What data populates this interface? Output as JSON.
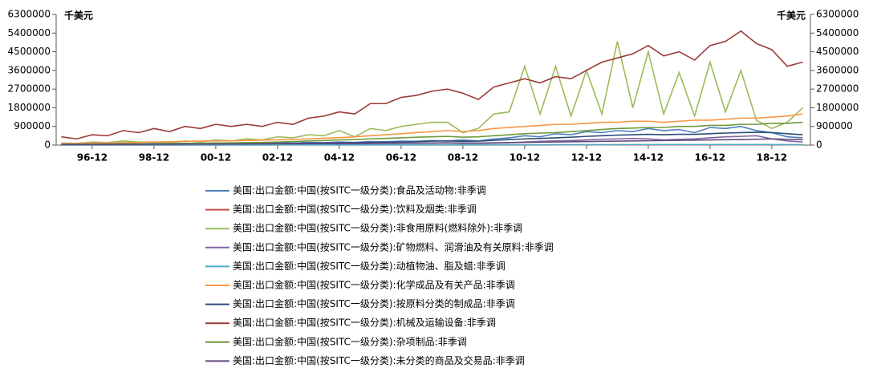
{
  "chart_data": {
    "type": "line",
    "y_unit": "千美元",
    "y2_unit": "千美元",
    "x": [
      "95-12",
      "96-06",
      "96-12",
      "97-06",
      "97-12",
      "98-06",
      "98-12",
      "99-06",
      "99-12",
      "00-06",
      "00-12",
      "01-06",
      "01-12",
      "02-06",
      "02-12",
      "03-06",
      "03-12",
      "04-06",
      "04-12",
      "05-06",
      "05-12",
      "06-06",
      "06-12",
      "07-06",
      "07-12",
      "08-06",
      "08-12",
      "09-06",
      "09-12",
      "10-06",
      "10-12",
      "11-06",
      "11-12",
      "12-06",
      "12-12",
      "13-06",
      "13-12",
      "14-06",
      "14-12",
      "15-06",
      "15-12",
      "16-06",
      "16-12",
      "17-06",
      "17-12",
      "18-06",
      "18-12",
      "19-06",
      "19-12"
    ],
    "xlim": [
      "95-10",
      "20-03"
    ],
    "xticks": [
      "96-12",
      "98-12",
      "00-12",
      "02-12",
      "04-12",
      "06-12",
      "08-12",
      "10-12",
      "12-12",
      "14-12",
      "16-12",
      "18-12"
    ],
    "ylim": [
      0,
      6300000
    ],
    "yticks": [
      0,
      900000,
      1800000,
      2700000,
      3600000,
      4500000,
      5400000,
      6300000
    ],
    "y2lim": [
      0,
      6300000
    ],
    "y2ticks": [
      0,
      900000,
      1800000,
      2700000,
      3600000,
      4500000,
      5400000,
      6300000
    ],
    "series": [
      {
        "name": "美国:出口金额:中国(按SITC一级分类):食品及活动物:非季调",
        "color": "#4f81bd",
        "values": [
          50000,
          40000,
          60000,
          50000,
          70000,
          60000,
          80000,
          60000,
          90000,
          70000,
          100000,
          80000,
          100000,
          90000,
          110000,
          100000,
          130000,
          120000,
          150000,
          130000,
          170000,
          160000,
          190000,
          180000,
          220000,
          200000,
          250000,
          200000,
          300000,
          350000,
          450000,
          400000,
          550000,
          500000,
          650000,
          600000,
          700000,
          650000,
          800000,
          700000,
          750000,
          600000,
          850000,
          800000,
          900000,
          700000,
          600000,
          400000,
          350000
        ]
      },
      {
        "name": "美国:出口金额:中国(按SITC一级分类):饮料及烟类:非季调",
        "color": "#c0504d",
        "values": [
          3000,
          3000,
          3000,
          3000,
          4000,
          4000,
          4000,
          4000,
          4000,
          5000,
          5000,
          5000,
          5000,
          5000,
          6000,
          6000,
          6000,
          6000,
          7000,
          7000,
          7000,
          7000,
          8000,
          8000,
          8000,
          8000,
          8000,
          8000,
          9000,
          9000,
          9000,
          9000,
          10000,
          10000,
          10000,
          10000,
          11000,
          11000,
          11000,
          11000,
          12000,
          12000,
          12000,
          12000,
          12000,
          12000,
          11000,
          10000,
          10000
        ]
      },
      {
        "name": "美国:出口金额:中国(按SITC一级分类):非食用原料(燃料除外):非季调",
        "color": "#9bbb59",
        "values": [
          100000,
          80000,
          150000,
          120000,
          200000,
          150000,
          150000,
          100000,
          200000,
          150000,
          250000,
          200000,
          300000,
          250000,
          400000,
          350000,
          500000,
          450000,
          700000,
          400000,
          800000,
          700000,
          900000,
          1000000,
          1100000,
          1100000,
          600000,
          800000,
          1500000,
          1600000,
          3800000,
          1500000,
          3800000,
          1400000,
          3600000,
          1500000,
          5000000,
          1800000,
          4500000,
          1500000,
          3500000,
          1400000,
          4000000,
          1600000,
          3600000,
          1200000,
          800000,
          1100000,
          1800000
        ]
      },
      {
        "name": "美国:出口金额:中国(按SITC一级分类):矿物燃料、润滑油及有关原料:非季调",
        "color": "#8064a2",
        "values": [
          20000,
          20000,
          20000,
          25000,
          25000,
          25000,
          30000,
          30000,
          30000,
          35000,
          35000,
          40000,
          40000,
          45000,
          45000,
          50000,
          55000,
          60000,
          65000,
          70000,
          75000,
          80000,
          85000,
          90000,
          100000,
          110000,
          80000,
          90000,
          100000,
          120000,
          150000,
          180000,
          200000,
          220000,
          250000,
          280000,
          300000,
          320000,
          300000,
          250000,
          280000,
          300000,
          350000,
          400000,
          420000,
          450000,
          300000,
          200000,
          150000
        ]
      },
      {
        "name": "美国:出口金额:中国(按SITC一级分类):动植物油、脂及蜡:非季调",
        "color": "#4bacc6",
        "values": [
          5000,
          5000,
          5000,
          6000,
          6000,
          6000,
          7000,
          7000,
          7000,
          8000,
          8000,
          8000,
          9000,
          9000,
          10000,
          10000,
          11000,
          11000,
          12000,
          12000,
          13000,
          13000,
          14000,
          14000,
          15000,
          15000,
          14000,
          15000,
          16000,
          17000,
          18000,
          18000,
          20000,
          20000,
          22000,
          22000,
          24000,
          24000,
          25000,
          25000,
          26000,
          26000,
          27000,
          27000,
          28000,
          28000,
          25000,
          22000,
          20000
        ]
      },
      {
        "name": "美国:出口金额:中国(按SITC一级分类):化学成品及有关产品:非季调",
        "color": "#f79646",
        "values": [
          80000,
          90000,
          100000,
          110000,
          120000,
          130000,
          150000,
          160000,
          180000,
          190000,
          200000,
          210000,
          220000,
          240000,
          260000,
          280000,
          300000,
          330000,
          360000,
          400000,
          450000,
          500000,
          550000,
          600000,
          650000,
          700000,
          650000,
          700000,
          800000,
          850000,
          900000,
          950000,
          1000000,
          1000000,
          1050000,
          1100000,
          1100000,
          1150000,
          1150000,
          1100000,
          1150000,
          1200000,
          1200000,
          1250000,
          1300000,
          1300000,
          1350000,
          1400000,
          1500000
        ]
      },
      {
        "name": "美国:出口金额:中国(按SITC一级分类):按原料分类的制成品:非季调",
        "color": "#2c4d7c",
        "values": [
          30000,
          30000,
          35000,
          35000,
          40000,
          40000,
          45000,
          45000,
          50000,
          55000,
          60000,
          60000,
          65000,
          70000,
          75000,
          80000,
          90000,
          100000,
          110000,
          120000,
          130000,
          140000,
          150000,
          170000,
          190000,
          200000,
          180000,
          190000,
          230000,
          270000,
          300000,
          320000,
          350000,
          380000,
          420000,
          450000,
          480000,
          500000,
          520000,
          500000,
          520000,
          520000,
          550000,
          580000,
          600000,
          620000,
          600000,
          550000,
          500000
        ]
      },
      {
        "name": "美国:出口金额:中国(按SITC一级分类):机械及运输设备:非季调",
        "color": "#9b3a38",
        "values": [
          400000,
          300000,
          500000,
          450000,
          700000,
          600000,
          800000,
          650000,
          900000,
          800000,
          1000000,
          900000,
          1000000,
          900000,
          1100000,
          1000000,
          1300000,
          1400000,
          1600000,
          1500000,
          2000000,
          2000000,
          2300000,
          2400000,
          2600000,
          2700000,
          2500000,
          2200000,
          2800000,
          3000000,
          3200000,
          3000000,
          3300000,
          3200000,
          3600000,
          4000000,
          4200000,
          4400000,
          4800000,
          4300000,
          4500000,
          4100000,
          4800000,
          5000000,
          5500000,
          4900000,
          4600000,
          3800000,
          4000000
        ]
      },
      {
        "name": "美国:出口金额:中国(按SITC一级分类):杂项制品:非季调",
        "color": "#6f9a3a",
        "values": [
          40000,
          45000,
          50000,
          55000,
          60000,
          65000,
          70000,
          75000,
          80000,
          90000,
          100000,
          110000,
          120000,
          130000,
          150000,
          170000,
          200000,
          220000,
          250000,
          270000,
          300000,
          320000,
          350000,
          380000,
          400000,
          420000,
          380000,
          400000,
          450000,
          500000,
          550000,
          580000,
          600000,
          650000,
          700000,
          750000,
          800000,
          820000,
          850000,
          850000,
          900000,
          900000,
          950000,
          950000,
          1000000,
          1000000,
          1050000,
          1050000,
          1100000
        ]
      },
      {
        "name": "美国:出口金额:中国(按SITC一级分类):未分类的商品及交易品:非季调",
        "color": "#604a7b",
        "values": [
          30000,
          30000,
          35000,
          35000,
          40000,
          40000,
          45000,
          45000,
          50000,
          50000,
          55000,
          55000,
          60000,
          60000,
          65000,
          65000,
          70000,
          70000,
          75000,
          80000,
          85000,
          90000,
          95000,
          100000,
          105000,
          110000,
          100000,
          100000,
          110000,
          120000,
          130000,
          140000,
          150000,
          160000,
          170000,
          180000,
          190000,
          200000,
          210000,
          220000,
          230000,
          240000,
          250000,
          260000,
          270000,
          280000,
          300000,
          280000,
          260000
        ]
      }
    ]
  }
}
